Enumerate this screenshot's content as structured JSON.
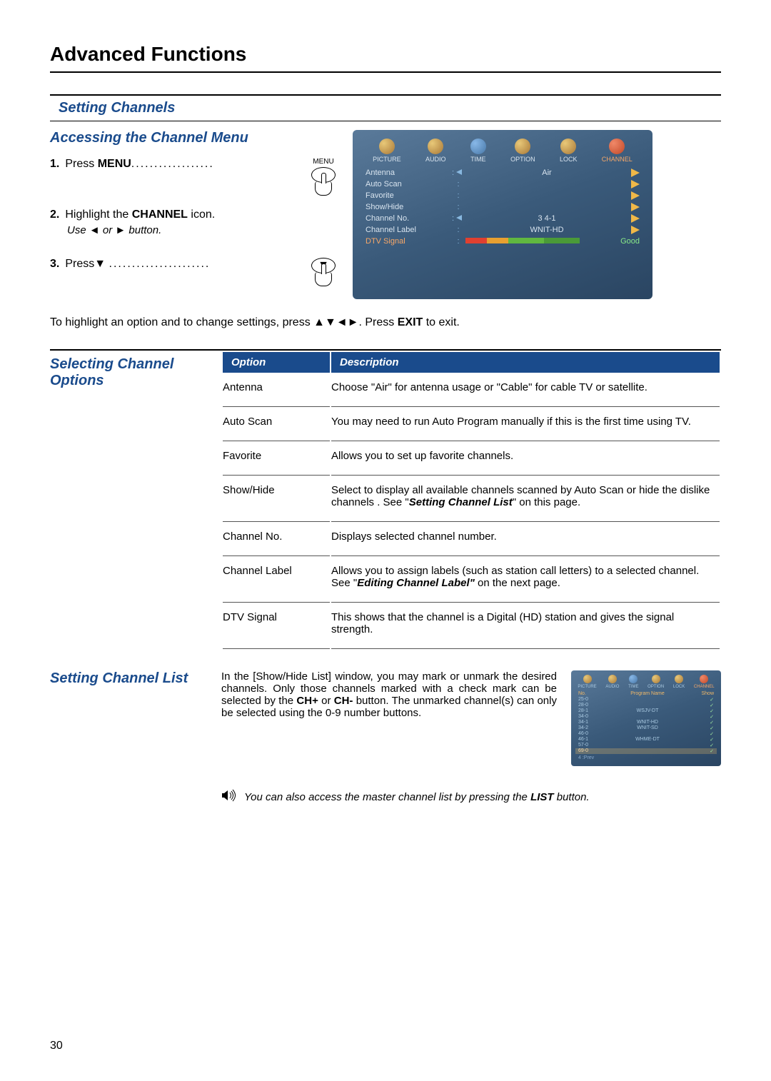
{
  "page": {
    "title": "Advanced Functions",
    "section": "Setting Channels",
    "access_heading": "Accessing the Channel Menu",
    "selecting_heading": "Selecting Channel Options",
    "list_heading": "Setting Channel List",
    "page_number": "30"
  },
  "steps": {
    "s1_num": "1.",
    "s1_prefix": "Press ",
    "s1_bold": "MENU",
    "s1_dots": "..................",
    "menu_label": "MENU",
    "s2_num": "2.",
    "s2_prefix": "Highlight the ",
    "s2_bold": "CHANNEL",
    "s2_suffix": " icon.",
    "use_prefix": "Use  ",
    "use_or": " or ",
    "use_suffix": "  button.",
    "s3_num": "3.",
    "s3_prefix": "Press",
    "s3_dots": "......................"
  },
  "instr": {
    "prefix": "To highlight an option and to change settings, press ",
    "arrows": "▲▼◄►",
    "mid": ".  Press ",
    "exit_bold": "EXIT",
    "suffix": " to exit."
  },
  "table": {
    "h1": "Option",
    "h2": "Description",
    "rows": [
      {
        "opt": "Antenna",
        "desc_pre": "Choose \"Air\" for antenna usage or \"Cable\" for cable TV or satellite.",
        "ref": "",
        "desc_post": ""
      },
      {
        "opt": "Auto Scan",
        "desc_pre": "You may need to run Auto Program manually if this is the first time using TV.",
        "ref": "",
        "desc_post": ""
      },
      {
        "opt": "Favorite",
        "desc_pre": "Allows you to set up favorite channels.",
        "ref": "",
        "desc_post": ""
      },
      {
        "opt": "Show/Hide",
        "desc_pre": "Select to display all available channels scanned by Auto Scan or hide the dislike channels . See \"",
        "ref": "Setting Channel List",
        "desc_post": "\" on this page."
      },
      {
        "opt": "Channel No.",
        "desc_pre": "Displays selected channel number.",
        "ref": "",
        "desc_post": ""
      },
      {
        "opt": "Channel Label",
        "desc_pre": "Allows you to assign labels (such as station call letters) to a selected channel. See \"",
        "ref": "Editing Channel Label\"",
        "desc_post": " on the next page."
      },
      {
        "opt": "DTV Signal",
        "desc_pre": "This shows that the channel is a Digital (HD) station and gives the signal strength.",
        "ref": "",
        "desc_post": ""
      }
    ]
  },
  "list_desc": {
    "p1a": "In the [Show/Hide List] window, you may mark or unmark the desired channels. Only those channels marked with a check mark can be selected by the ",
    "chplus": "CH+",
    "or": " or ",
    "chminus": "CH-",
    "p1b": " button. The unmarked channel(s) can only be selected using the 0-9 number buttons."
  },
  "tip": {
    "pre": "You can also access the master channel list by pressing the ",
    "bold": "LIST",
    "post": " button."
  },
  "osd": {
    "tabs": [
      "PICTURE",
      "AUDIO",
      "TIME",
      "OPTION",
      "LOCK",
      "CHANNEL"
    ],
    "rows": [
      {
        "label": "Antenna",
        "sep": ":",
        "larrow": true,
        "val": "Air"
      },
      {
        "label": "Auto Scan",
        "sep": ":",
        "larrow": false,
        "val": ""
      },
      {
        "label": "Favorite",
        "sep": ":",
        "larrow": false,
        "val": ""
      },
      {
        "label": "Show/Hide",
        "sep": ":",
        "larrow": false,
        "val": ""
      },
      {
        "label": "Channel No.",
        "sep": ":",
        "larrow": true,
        "val": "3 4-1"
      },
      {
        "label": "Channel Label",
        "sep": ":",
        "larrow": false,
        "val": "WNIT-HD"
      }
    ],
    "dtv_label": "DTV Signal",
    "dtv_sep": ":",
    "good": "Good",
    "signal_colors": [
      "#e04030",
      "#e8a030",
      "#60b840",
      "#4a9a38"
    ],
    "signal_widths": [
      30,
      30,
      50,
      50
    ]
  },
  "osd_small": {
    "head_no": "No.",
    "head_name": "Program Name",
    "head_show": "Show",
    "rows": [
      {
        "no": "25-0",
        "name": "",
        "sel": false
      },
      {
        "no": "28-0",
        "name": "",
        "sel": false
      },
      {
        "no": "28-1",
        "name": "WSJV-DT",
        "sel": false
      },
      {
        "no": "34-0",
        "name": "",
        "sel": false
      },
      {
        "no": "34-1",
        "name": "WNIT-HD",
        "sel": false
      },
      {
        "no": "34-2",
        "name": "WNIT-SD",
        "sel": false
      },
      {
        "no": "46-0",
        "name": "",
        "sel": false
      },
      {
        "no": "46-1",
        "name": "WHME-DT",
        "sel": false
      },
      {
        "no": "57-0",
        "name": "",
        "sel": false
      },
      {
        "no": "69-0",
        "name": "",
        "sel": true
      }
    ],
    "footer": "4 :Prev"
  }
}
